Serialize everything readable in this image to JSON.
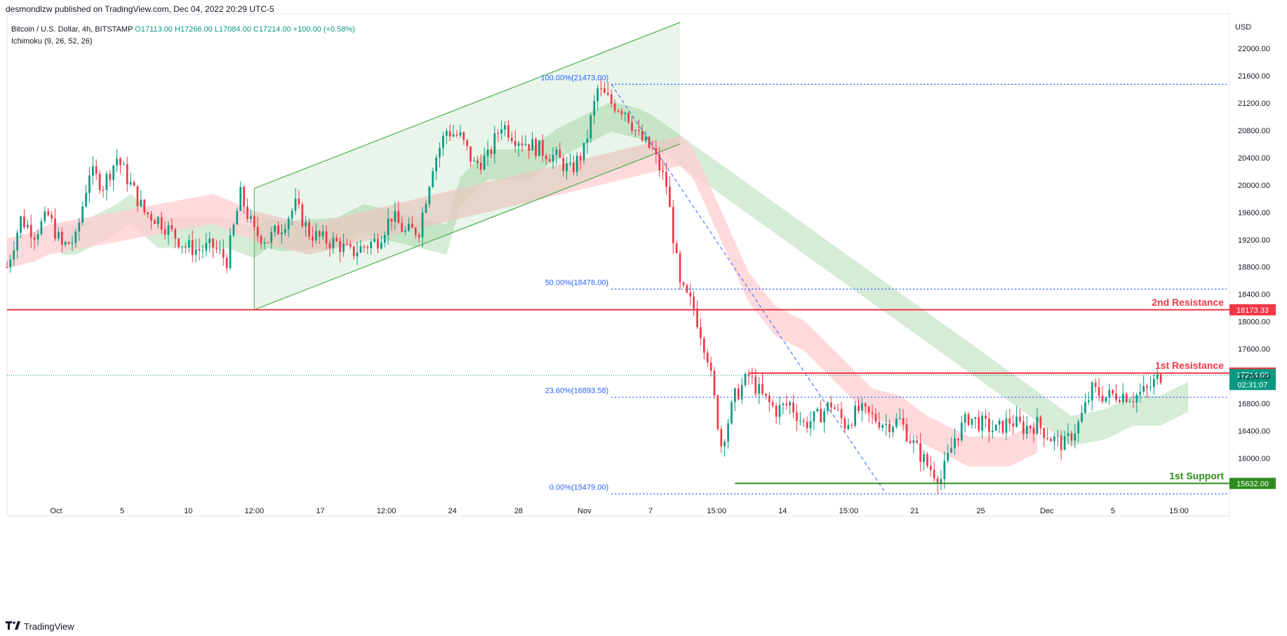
{
  "header": {
    "published_by": "desmondlzw published on TradingView.com, Dec 04, 2022 20:29 UTC-5"
  },
  "legend": {
    "symbol": "Bitcoin / U.S. Dollar, 4h, BITSTAMP",
    "ohlc": "O17113.00  H17266.00  L17084.00  C17214.00  +100.00 (+0.58%)",
    "indicator": "Ichimoku (9, 26, 52, 26)"
  },
  "footer": {
    "brand": "TradingView",
    "logo": "tradingview-logo-icon"
  },
  "colors": {
    "up": "#089981",
    "down": "#f23645",
    "resistance": "#f23645",
    "support": "#2e8b1e",
    "fib": "#2962ff",
    "cloud_bull": "#c8e6c9",
    "cloud_bear": "#ffcdd2",
    "channel": "#4caf50"
  },
  "chart_data": {
    "type": "candlestick",
    "title": "Bitcoin / U.S. Dollar, 4h, BITSTAMP",
    "ylabel": "USD",
    "ylim": [
      15400,
      22400
    ],
    "y_ticks": [
      16000,
      16400,
      16800,
      17200,
      17600,
      18000,
      18400,
      18800,
      19200,
      19600,
      20000,
      20400,
      20800,
      21200,
      21600,
      22000
    ],
    "x_ticks": [
      "Oct",
      "5",
      "10",
      "12:00",
      "17",
      "12:00",
      "24",
      "28",
      "Nov",
      "7",
      "15:00",
      "14",
      "15:00",
      "21",
      "25",
      "Dec",
      "5",
      "15:00"
    ],
    "price_path": [
      [
        0,
        18800
      ],
      [
        2,
        19500
      ],
      [
        4,
        19300
      ],
      [
        6,
        19550
      ],
      [
        8,
        19100
      ],
      [
        10,
        19200
      ],
      [
        12,
        20200
      ],
      [
        14,
        20000
      ],
      [
        16,
        20400
      ],
      [
        18,
        20000
      ],
      [
        20,
        19600
      ],
      [
        22,
        19500
      ],
      [
        24,
        19300
      ],
      [
        26,
        19100
      ],
      [
        28,
        19050
      ],
      [
        30,
        19100
      ],
      [
        32,
        18900
      ],
      [
        34,
        19850
      ],
      [
        36,
        19300
      ],
      [
        38,
        19200
      ],
      [
        40,
        19400
      ],
      [
        42,
        19700
      ],
      [
        44,
        19300
      ],
      [
        46,
        19200
      ],
      [
        48,
        19150
      ],
      [
        50,
        19000
      ],
      [
        52,
        19100
      ],
      [
        54,
        19200
      ],
      [
        56,
        19550
      ],
      [
        58,
        19300
      ],
      [
        60,
        19350
      ],
      [
        62,
        20300
      ],
      [
        64,
        20800
      ],
      [
        66,
        20700
      ],
      [
        68,
        20300
      ],
      [
        70,
        20400
      ],
      [
        72,
        20900
      ],
      [
        74,
        20700
      ],
      [
        76,
        20600
      ],
      [
        78,
        20500
      ],
      [
        80,
        20400
      ],
      [
        82,
        20200
      ],
      [
        84,
        20500
      ],
      [
        86,
        21400
      ],
      [
        88,
        21200
      ],
      [
        90,
        21100
      ],
      [
        92,
        20700
      ],
      [
        94,
        20500
      ],
      [
        96,
        20000
      ],
      [
        98,
        18500
      ],
      [
        100,
        18200
      ],
      [
        102,
        17500
      ],
      [
        104,
        16200
      ],
      [
        106,
        16900
      ],
      [
        108,
        17200
      ],
      [
        110,
        16900
      ],
      [
        112,
        16700
      ],
      [
        114,
        16800
      ],
      [
        116,
        16500
      ],
      [
        118,
        16600
      ],
      [
        120,
        16800
      ],
      [
        122,
        16500
      ],
      [
        124,
        16700
      ],
      [
        126,
        16600
      ],
      [
        128,
        16500
      ],
      [
        130,
        16550
      ],
      [
        132,
        16200
      ],
      [
        134,
        15900
      ],
      [
        136,
        15700
      ],
      [
        138,
        16300
      ],
      [
        140,
        16600
      ],
      [
        142,
        16500
      ],
      [
        144,
        16400
      ],
      [
        146,
        16550
      ],
      [
        148,
        16450
      ],
      [
        150,
        16500
      ],
      [
        152,
        16300
      ],
      [
        154,
        16200
      ],
      [
        156,
        16500
      ],
      [
        158,
        17000
      ],
      [
        160,
        16900
      ],
      [
        162,
        16950
      ],
      [
        164,
        16900
      ],
      [
        166,
        17000
      ],
      [
        168,
        17214
      ]
    ],
    "cloud_bull": [
      [
        8,
        19200
      ],
      [
        10,
        19200
      ],
      [
        16,
        19500
      ],
      [
        18,
        19650
      ],
      [
        22,
        19300
      ],
      [
        32,
        19300
      ],
      [
        36,
        19150
      ],
      [
        38,
        19300
      ],
      [
        40,
        19250
      ],
      [
        48,
        19300
      ],
      [
        52,
        19500
      ],
      [
        56,
        19400
      ],
      [
        60,
        19300
      ],
      [
        64,
        19200
      ],
      [
        66,
        19900
      ],
      [
        70,
        20300
      ],
      [
        76,
        20300
      ],
      [
        80,
        20600
      ],
      [
        84,
        20800
      ],
      [
        88,
        21000
      ],
      [
        92,
        20900
      ],
      [
        94,
        20800
      ],
      [
        155,
        16400
      ],
      [
        160,
        16500
      ],
      [
        164,
        16700
      ],
      [
        168,
        16700
      ],
      [
        172,
        16900
      ]
    ],
    "cloud_bear": [
      [
        0,
        19000
      ],
      [
        4,
        19100
      ],
      [
        6,
        19200
      ],
      [
        30,
        19650
      ],
      [
        36,
        19400
      ],
      [
        40,
        19300
      ],
      [
        44,
        19200
      ],
      [
        98,
        20500
      ],
      [
        100,
        20300
      ],
      [
        104,
        19400
      ],
      [
        108,
        18500
      ],
      [
        112,
        18000
      ],
      [
        116,
        17800
      ],
      [
        120,
        17400
      ],
      [
        124,
        17000
      ],
      [
        126,
        16800
      ],
      [
        130,
        16700
      ],
      [
        134,
        16400
      ],
      [
        136,
        16300
      ],
      [
        140,
        16100
      ],
      [
        146,
        16100
      ],
      [
        150,
        16300
      ]
    ],
    "levels": [
      {
        "name": "2nd Resistance",
        "value": 18173.33,
        "color": "#f23645"
      },
      {
        "name": "1st Resistance",
        "value": 17246.66,
        "color": "#f23645"
      },
      {
        "name": "1st Support",
        "value": 15632.0,
        "color": "#2e8b1e"
      }
    ],
    "last_price": {
      "value": 17214.0,
      "countdown": "02:31:07"
    },
    "fibonacci": [
      {
        "label": "100.00%(21473.00)",
        "value": 21473.0
      },
      {
        "label": "50.00%(18476.00)",
        "value": 18476.0
      },
      {
        "label": "23.60%(16893.58)",
        "value": 16893.58
      },
      {
        "label": "0.00%(15479.00)",
        "value": 15479.0
      }
    ],
    "channel": {
      "lower_start": [
        36,
        18173.33
      ],
      "lower_end": [
        98,
        20600
      ],
      "upper_start": [
        36,
        19950
      ],
      "upper_end": [
        98,
        22380
      ]
    },
    "grid": false,
    "legend_position": "top-left"
  }
}
